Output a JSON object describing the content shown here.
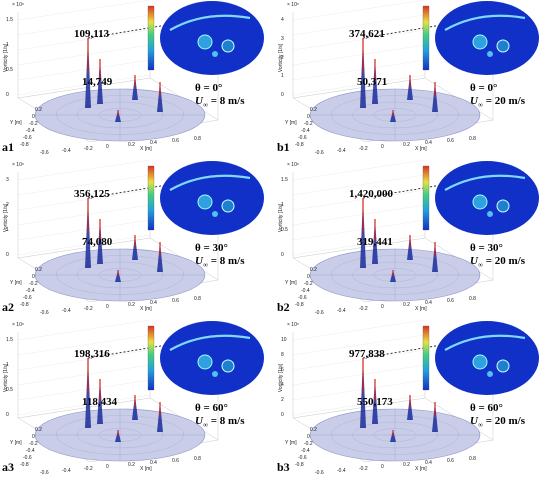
{
  "axes": {
    "z_label": "Vorticity [1/s]",
    "y_label": "Y [m]",
    "x_label": "X [m]",
    "y_ticks": [
      "-0.8",
      "-0.6",
      "-0.4",
      "-0.2",
      "0",
      "0.2"
    ],
    "x_ticks": [
      "-0.6",
      "-0.4",
      "-0.2",
      "0",
      "0.2",
      "0.4",
      "0.6",
      "0.8"
    ]
  },
  "panels": [
    {
      "label": "a1",
      "angle": "θ = 0°",
      "speed": "= 8 m/s",
      "peak": "109,113",
      "second": "14,749",
      "exponent": "× 10⁵",
      "z_ticks": [
        "0",
        "0.5",
        "1",
        "1.5"
      ]
    },
    {
      "label": "b1",
      "angle": "θ = 0°",
      "speed": "= 20 m/s",
      "peak": "374,621",
      "second": "50,371",
      "exponent": "× 10⁵",
      "z_ticks": [
        "0",
        "1",
        "2",
        "3",
        "4"
      ]
    },
    {
      "label": "a2",
      "angle": "θ = 30°",
      "speed": "= 8 m/s",
      "peak": "356,125",
      "second": "74,080",
      "exponent": "× 10⁵",
      "z_ticks": [
        "0",
        "1",
        "2",
        "3"
      ]
    },
    {
      "label": "b2",
      "angle": "θ = 30°",
      "speed": "= 20 m/s",
      "peak": "1,420,000",
      "second": "319,441",
      "exponent": "× 10⁶",
      "z_ticks": [
        "0",
        "0.5",
        "1",
        "1.5"
      ]
    },
    {
      "label": "a3",
      "angle": "θ = 60°",
      "speed": "= 8 m/s",
      "peak": "198,316",
      "second": "118,434",
      "exponent": "× 10⁵",
      "z_ticks": [
        "0",
        "0.5",
        "1",
        "1.5"
      ]
    },
    {
      "label": "b3",
      "angle": "θ = 60°",
      "speed": "= 20 m/s",
      "peak": "977,838",
      "second": "550,173",
      "exponent": "× 10⁵",
      "z_ticks": [
        "0",
        "2",
        "4",
        "6",
        "8",
        "10"
      ]
    }
  ],
  "speed_symbol": "U",
  "speed_subscript": "∞",
  "colors": {
    "disk_fill": "#c9cde8",
    "disk_stroke": "#8a90c8",
    "inset_background": "#1030c8",
    "jet_low": "#1a2a9a",
    "jet_high": "#d02020"
  }
}
